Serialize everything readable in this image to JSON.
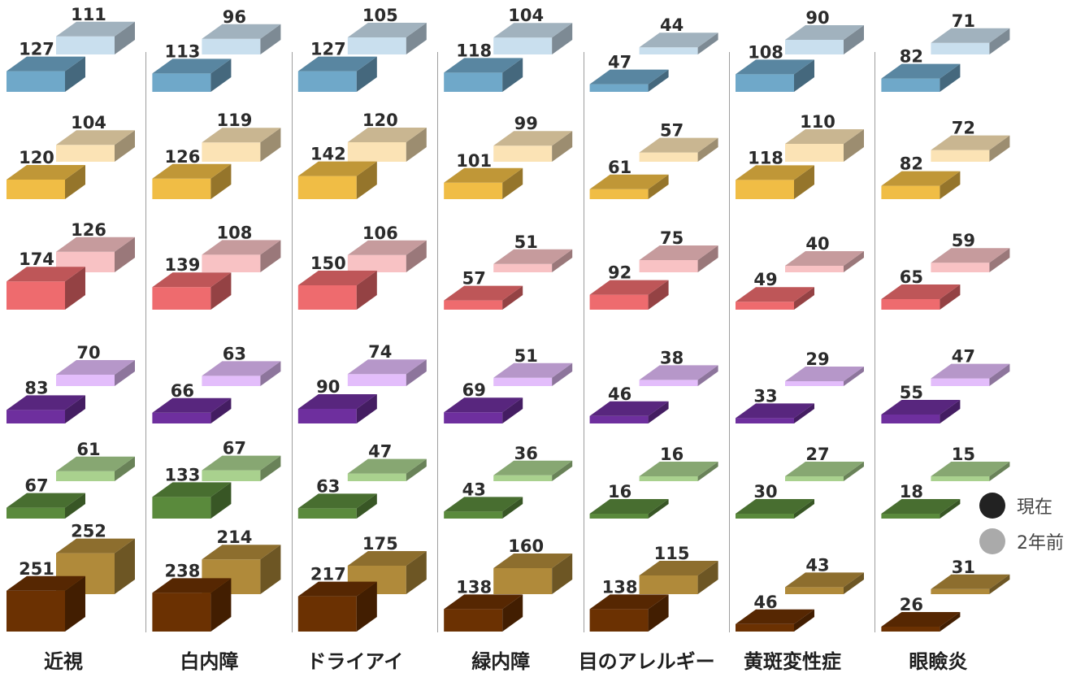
{
  "chart_data": {
    "type": "bar",
    "categories": [
      "近視",
      "白内障",
      "ドライアイ",
      "緑内障",
      "目のアレルギー",
      "黄斑変性症",
      "眼瞼炎"
    ],
    "series": [
      {
        "name": "現在",
        "values": [
          [
            127,
            120,
            174,
            83,
            67,
            251
          ],
          [
            113,
            126,
            139,
            66,
            133,
            238
          ],
          [
            127,
            142,
            150,
            90,
            63,
            217
          ],
          [
            118,
            101,
            57,
            69,
            43,
            138
          ],
          [
            47,
            61,
            92,
            46,
            16,
            138
          ],
          [
            108,
            118,
            49,
            33,
            30,
            46
          ],
          [
            82,
            82,
            65,
            55,
            18,
            26
          ]
        ]
      },
      {
        "name": "2年前",
        "values": [
          [
            111,
            104,
            126,
            70,
            61,
            252
          ],
          [
            96,
            119,
            108,
            63,
            67,
            214
          ],
          [
            105,
            120,
            106,
            74,
            47,
            175
          ],
          [
            104,
            99,
            51,
            51,
            36,
            160
          ],
          [
            44,
            57,
            75,
            38,
            16,
            115
          ],
          [
            90,
            110,
            40,
            29,
            27,
            43
          ],
          [
            71,
            72,
            59,
            47,
            15,
            31
          ]
        ]
      }
    ],
    "row_colors": [
      {
        "current": "#6fa8c9",
        "past": "#c9dfee"
      },
      {
        "current": "#f0bd45",
        "past": "#fbe3b5"
      },
      {
        "current": "#ee6b6e",
        "past": "#f8c2c4"
      },
      {
        "current": "#6e2f9e",
        "past": "#e3bdfb"
      },
      {
        "current": "#5a8a3c",
        "past": "#a9d18e"
      },
      {
        "current": "#6b3102",
        "past": "#b08a3a"
      }
    ],
    "legend": [
      {
        "label": "現在",
        "color": "#222222"
      },
      {
        "label": "2年前",
        "color": "#aaaaaa"
      }
    ]
  }
}
